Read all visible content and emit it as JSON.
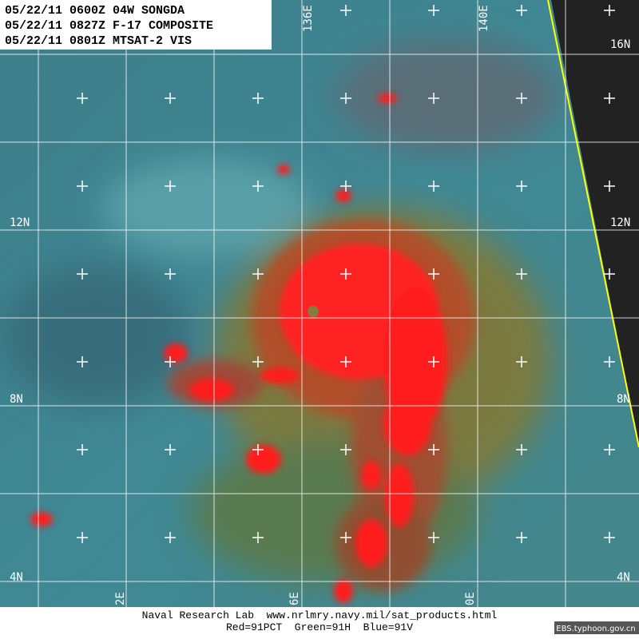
{
  "header": {
    "lines": [
      "05/22/11 0600Z 04W SONGDA",
      "05/22/11 0827Z F-17 COMPOSITE",
      "05/22/11 0801Z MTSAT-2 VIS"
    ]
  },
  "grid_labels": {
    "latitude": [
      "16N",
      "12N",
      "8N",
      "4N"
    ],
    "longitude_top": [
      "136E",
      "140E"
    ],
    "longitude_bottom": [
      "2E",
      "6E",
      "0E"
    ]
  },
  "footer": {
    "credit": "Naval Research Lab  www.nrlmry.navy.mil/sat_products.html",
    "channels": "Red=91PCT  Green=91H  Blue=91V",
    "watermark": "EBS.typhoon.gov.cn"
  }
}
